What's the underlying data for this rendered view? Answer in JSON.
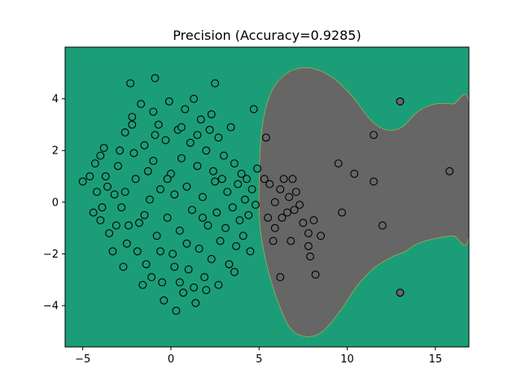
{
  "chart_data": {
    "type": "scatter",
    "title": "Precision (Accuracy=0.9285)",
    "xlabel": "",
    "ylabel": "",
    "xlim": [
      -6,
      16.9
    ],
    "ylim": [
      -5.6,
      6.0
    ],
    "x_ticks": [
      -5,
      0,
      5,
      10,
      15
    ],
    "y_ticks": [
      -4,
      -2,
      0,
      2,
      4
    ],
    "grid": false,
    "colors": {
      "background_region": "#1b9e77",
      "decision_region": "#666666",
      "point_edge": "#000000",
      "point_class_0": "#1b9e77",
      "point_class_1": "#666666"
    },
    "decision_region_boundary": [
      [
        5.0,
        0.0
      ],
      [
        5.1,
        -1.2
      ],
      [
        5.5,
        -2.6
      ],
      [
        6.1,
        -3.9
      ],
      [
        6.8,
        -4.9
      ],
      [
        7.7,
        -5.2
      ],
      [
        8.6,
        -5.0
      ],
      [
        9.6,
        -4.2
      ],
      [
        10.6,
        -3.2
      ],
      [
        11.6,
        -2.5
      ],
      [
        12.6,
        -2.1
      ],
      [
        13.3,
        -1.9
      ],
      [
        14.0,
        -1.6
      ],
      [
        15.0,
        -1.4
      ],
      [
        16.0,
        -1.3
      ],
      [
        16.9,
        -1.3
      ],
      [
        16.9,
        3.8
      ],
      [
        16.0,
        3.8
      ],
      [
        15.0,
        3.8
      ],
      [
        14.0,
        3.5
      ],
      [
        13.1,
        2.9
      ],
      [
        12.2,
        2.8
      ],
      [
        11.3,
        3.2
      ],
      [
        10.4,
        4.0
      ],
      [
        9.4,
        4.7
      ],
      [
        8.4,
        5.1
      ],
      [
        7.5,
        5.2
      ],
      [
        6.6,
        5.0
      ],
      [
        5.8,
        4.4
      ],
      [
        5.3,
        3.4
      ],
      [
        5.05,
        1.9
      ]
    ],
    "series": [
      {
        "class": 0,
        "points": [
          [
            -5.0,
            0.8
          ],
          [
            -4.6,
            1.0
          ],
          [
            -4.3,
            1.5
          ],
          [
            -4.0,
            1.8
          ],
          [
            -3.8,
            2.1
          ],
          [
            -4.2,
            0.4
          ],
          [
            -4.4,
            -0.4
          ],
          [
            -4.0,
            -0.7
          ],
          [
            -3.6,
            0.6
          ],
          [
            -3.5,
            -1.2
          ],
          [
            -3.2,
            0.3
          ],
          [
            -3.0,
            1.4
          ],
          [
            -2.8,
            -0.2
          ],
          [
            -2.6,
            2.7
          ],
          [
            -2.5,
            -1.6
          ],
          [
            -2.3,
            4.6
          ],
          [
            -2.2,
            3.3
          ],
          [
            -2.0,
            0.9
          ],
          [
            -1.8,
            -0.8
          ],
          [
            -1.7,
            3.8
          ],
          [
            -1.5,
            2.2
          ],
          [
            -1.4,
            -2.4
          ],
          [
            -1.2,
            0.1
          ],
          [
            -1.0,
            1.6
          ],
          [
            -0.9,
            4.8
          ],
          [
            -0.8,
            -1.3
          ],
          [
            -0.7,
            3.0
          ],
          [
            -0.6,
            0.5
          ],
          [
            -0.5,
            -3.1
          ],
          [
            -0.3,
            2.4
          ],
          [
            -0.2,
            -0.6
          ],
          [
            -0.1,
            3.9
          ],
          [
            0.0,
            1.1
          ],
          [
            0.1,
            -2.0
          ],
          [
            0.2,
            0.3
          ],
          [
            0.3,
            -4.2
          ],
          [
            0.4,
            2.8
          ],
          [
            0.5,
            -1.1
          ],
          [
            0.6,
            1.7
          ],
          [
            0.7,
            -3.5
          ],
          [
            0.8,
            3.6
          ],
          [
            0.9,
            0.6
          ],
          [
            1.0,
            -2.6
          ],
          [
            1.1,
            2.3
          ],
          [
            1.2,
            -0.3
          ],
          [
            1.3,
            4.0
          ],
          [
            1.4,
            -3.9
          ],
          [
            1.5,
            1.4
          ],
          [
            1.6,
            -1.8
          ],
          [
            1.7,
            3.2
          ],
          [
            1.8,
            0.2
          ],
          [
            1.9,
            -2.9
          ],
          [
            2.0,
            2.0
          ],
          [
            2.1,
            -0.9
          ],
          [
            2.2,
            2.8
          ],
          [
            2.3,
            -2.2
          ],
          [
            2.4,
            1.2
          ],
          [
            2.5,
            4.6
          ],
          [
            2.6,
            -0.4
          ],
          [
            2.7,
            2.5
          ],
          [
            2.8,
            -1.5
          ],
          [
            2.9,
            0.9
          ],
          [
            3.0,
            1.8
          ],
          [
            3.1,
            -1.0
          ],
          [
            3.2,
            0.4
          ],
          [
            3.3,
            -2.4
          ],
          [
            3.4,
            2.9
          ],
          [
            3.5,
            -0.2
          ],
          [
            3.6,
            1.5
          ],
          [
            3.7,
            -1.7
          ],
          [
            3.8,
            0.7
          ],
          [
            3.9,
            -0.7
          ],
          [
            4.0,
            1.1
          ],
          [
            4.1,
            -1.3
          ],
          [
            4.2,
            0.1
          ],
          [
            4.3,
            0.9
          ],
          [
            4.4,
            -0.5
          ],
          [
            4.5,
            -1.9
          ],
          [
            4.6,
            0.5
          ],
          [
            4.7,
            3.6
          ],
          [
            4.8,
            -0.1
          ],
          [
            4.9,
            1.3
          ],
          [
            -1.6,
            -3.2
          ],
          [
            -1.1,
            -2.9
          ],
          [
            -0.4,
            -3.8
          ],
          [
            0.5,
            -3.1
          ],
          [
            1.3,
            -3.3
          ],
          [
            2.0,
            -3.4
          ],
          [
            -3.3,
            -1.9
          ],
          [
            -2.7,
            -2.5
          ],
          [
            -3.9,
            -0.2
          ],
          [
            -2.1,
            1.9
          ],
          [
            -1.3,
            1.2
          ],
          [
            -0.9,
            2.6
          ],
          [
            -2.4,
            -0.9
          ],
          [
            -3.7,
            1.0
          ],
          [
            0.9,
            -1.6
          ],
          [
            1.8,
            -0.6
          ],
          [
            2.5,
            0.8
          ],
          [
            -0.2,
            0.9
          ],
          [
            -1.9,
            -1.9
          ],
          [
            -3.1,
            -0.9
          ],
          [
            -2.9,
            2.0
          ],
          [
            -2.2,
            3.0
          ],
          [
            -1.0,
            3.5
          ],
          [
            0.6,
            2.9
          ],
          [
            1.5,
            2.6
          ],
          [
            2.3,
            3.4
          ],
          [
            0.2,
            -2.5
          ],
          [
            -0.6,
            -1.9
          ],
          [
            -1.5,
            -0.5
          ],
          [
            -2.6,
            0.4
          ],
          [
            3.6,
            -2.7
          ],
          [
            2.7,
            -3.2
          ]
        ]
      },
      {
        "class": 1,
        "points": [
          [
            5.3,
            0.9
          ],
          [
            5.6,
            0.7
          ],
          [
            5.9,
            0.0
          ],
          [
            6.2,
            0.5
          ],
          [
            6.4,
            0.9
          ],
          [
            6.7,
            0.2
          ],
          [
            6.9,
            0.9
          ],
          [
            7.1,
            0.4
          ],
          [
            7.3,
            -0.1
          ],
          [
            7.5,
            -0.8
          ],
          [
            7.8,
            -1.2
          ],
          [
            8.1,
            -0.7
          ],
          [
            8.5,
            -1.3
          ],
          [
            7.8,
            -1.7
          ],
          [
            7.9,
            -2.1
          ],
          [
            8.2,
            -2.8
          ],
          [
            6.2,
            -2.9
          ],
          [
            6.8,
            -1.5
          ],
          [
            5.5,
            -0.6
          ],
          [
            5.9,
            -1.0
          ],
          [
            6.3,
            -0.6
          ],
          [
            6.6,
            -0.4
          ],
          [
            7.0,
            -0.3
          ],
          [
            5.8,
            -1.5
          ],
          [
            5.4,
            2.5
          ],
          [
            9.5,
            1.5
          ],
          [
            9.7,
            -0.4
          ],
          [
            10.4,
            1.1
          ],
          [
            11.5,
            2.6
          ],
          [
            11.5,
            0.8
          ],
          [
            12.0,
            -0.9
          ],
          [
            13.0,
            3.9
          ],
          [
            13.0,
            -3.5
          ],
          [
            15.8,
            1.2
          ]
        ]
      }
    ]
  }
}
